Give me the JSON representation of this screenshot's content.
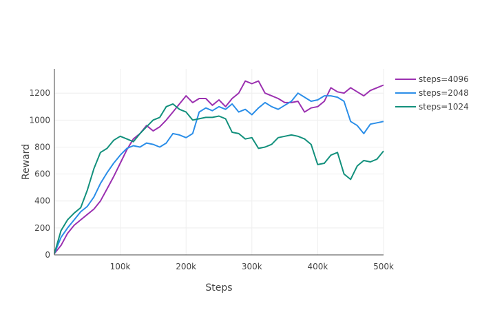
{
  "chart_data": {
    "type": "line",
    "title": "",
    "xlabel": "Steps",
    "ylabel": "Reward",
    "xlim": [
      0,
      500000
    ],
    "ylim": [
      0,
      1380
    ],
    "x_ticks": [
      100000,
      200000,
      300000,
      400000,
      500000
    ],
    "x_tick_labels": [
      "100k",
      "200k",
      "300k",
      "400k",
      "500k"
    ],
    "y_ticks": [
      0,
      200,
      400,
      600,
      800,
      1000,
      1200
    ],
    "y_tick_labels": [
      "0",
      "200",
      "400",
      "600",
      "800",
      "1000",
      "1200"
    ],
    "grid": true,
    "legend_position": "top-right",
    "series": [
      {
        "name": "steps=4096",
        "color": "#9b30b0",
        "x": [
          0,
          10000,
          20000,
          30000,
          40000,
          50000,
          60000,
          70000,
          80000,
          90000,
          100000,
          110000,
          120000,
          130000,
          140000,
          150000,
          160000,
          170000,
          180000,
          190000,
          200000,
          210000,
          220000,
          230000,
          240000,
          250000,
          260000,
          270000,
          280000,
          290000,
          300000,
          310000,
          320000,
          330000,
          340000,
          350000,
          360000,
          370000,
          380000,
          390000,
          400000,
          410000,
          420000,
          430000,
          440000,
          450000,
          460000,
          470000,
          480000,
          490000,
          500000
        ],
        "y": [
          10,
          70,
          160,
          220,
          260,
          300,
          340,
          400,
          490,
          580,
          680,
          780,
          860,
          900,
          960,
          920,
          950,
          1000,
          1060,
          1120,
          1180,
          1130,
          1160,
          1160,
          1110,
          1150,
          1100,
          1160,
          1200,
          1290,
          1270,
          1290,
          1200,
          1180,
          1160,
          1130,
          1130,
          1140,
          1060,
          1090,
          1100,
          1140,
          1240,
          1210,
          1200,
          1240,
          1210,
          1180,
          1220,
          1240,
          1260
        ]
      },
      {
        "name": "steps=2048",
        "color": "#2b8ee8",
        "x": [
          0,
          10000,
          20000,
          30000,
          40000,
          50000,
          60000,
          70000,
          80000,
          90000,
          100000,
          110000,
          120000,
          130000,
          140000,
          150000,
          160000,
          170000,
          180000,
          190000,
          200000,
          210000,
          220000,
          230000,
          240000,
          250000,
          260000,
          270000,
          280000,
          290000,
          300000,
          310000,
          320000,
          330000,
          340000,
          350000,
          360000,
          370000,
          380000,
          390000,
          400000,
          410000,
          420000,
          430000,
          440000,
          450000,
          460000,
          470000,
          480000,
          490000,
          500000
        ],
        "y": [
          10,
          130,
          200,
          260,
          320,
          360,
          430,
          530,
          610,
          680,
          740,
          790,
          810,
          800,
          830,
          820,
          800,
          830,
          900,
          890,
          870,
          900,
          1060,
          1090,
          1070,
          1100,
          1080,
          1120,
          1060,
          1080,
          1040,
          1090,
          1130,
          1100,
          1080,
          1110,
          1140,
          1200,
          1170,
          1140,
          1150,
          1180,
          1180,
          1170,
          1140,
          990,
          960,
          900,
          970,
          980,
          990
        ]
      },
      {
        "name": "steps=1024",
        "color": "#12907c",
        "x": [
          0,
          10000,
          20000,
          30000,
          40000,
          50000,
          60000,
          70000,
          80000,
          90000,
          100000,
          110000,
          120000,
          130000,
          140000,
          150000,
          160000,
          170000,
          180000,
          190000,
          200000,
          210000,
          220000,
          230000,
          240000,
          250000,
          260000,
          270000,
          280000,
          290000,
          300000,
          310000,
          320000,
          330000,
          340000,
          350000,
          360000,
          370000,
          380000,
          390000,
          400000,
          410000,
          420000,
          430000,
          440000,
          450000,
          460000,
          470000,
          480000,
          490000,
          500000
        ],
        "y": [
          10,
          180,
          260,
          310,
          350,
          480,
          640,
          760,
          790,
          850,
          880,
          860,
          840,
          900,
          950,
          1000,
          1020,
          1100,
          1120,
          1080,
          1060,
          1000,
          1010,
          1020,
          1020,
          1030,
          1010,
          910,
          900,
          860,
          870,
          790,
          800,
          820,
          870,
          880,
          890,
          880,
          860,
          820,
          670,
          680,
          740,
          760,
          600,
          560,
          660,
          700,
          690,
          710,
          770
        ]
      }
    ]
  }
}
